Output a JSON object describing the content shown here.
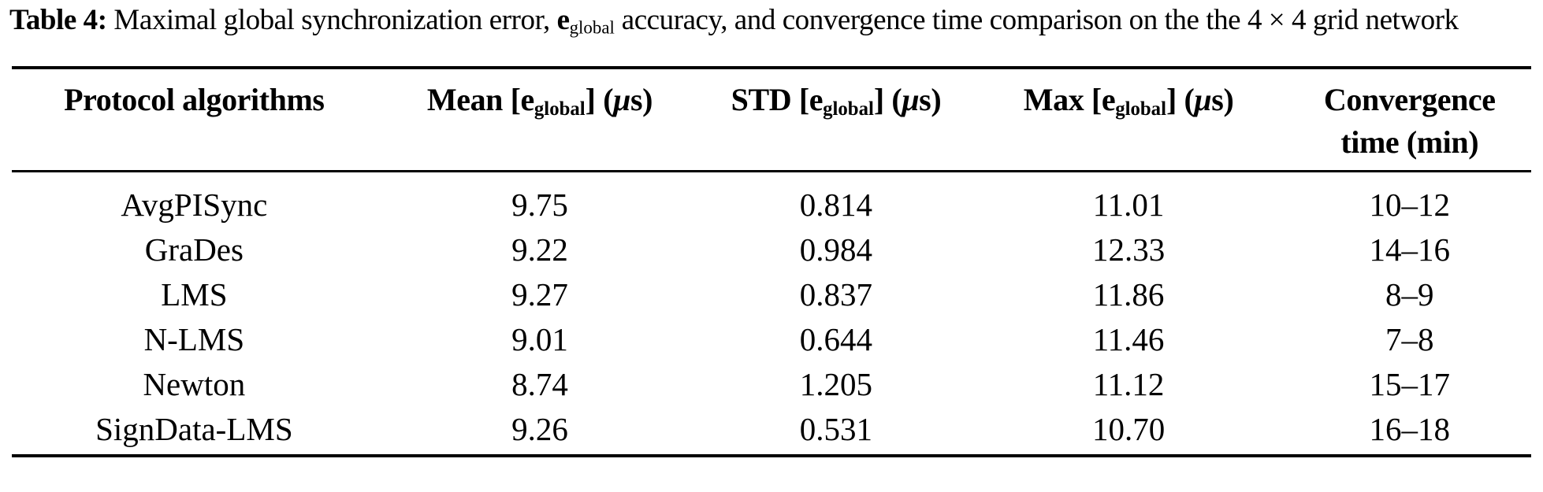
{
  "page": {
    "background_color": "#ffffff",
    "text_color": "#000000"
  },
  "caption": {
    "label": "Table 4:",
    "segments": [
      {
        "text": "Table 4:",
        "style": "bold"
      },
      {
        "text": " Maximal global synchronization error, ",
        "style": "normal"
      },
      {
        "text": "e",
        "style": "bold"
      },
      {
        "text": "global",
        "style": "subscript"
      },
      {
        "text": " accuracy, and convergence time comparison on the the 4 × 4 grid network",
        "style": "normal"
      }
    ]
  },
  "table": {
    "row_keys": [
      "algorithm",
      "mean",
      "std",
      "max",
      "convergence"
    ],
    "columns": [
      {
        "id": "algorithm",
        "segments": [
          {
            "text": "Protocol algorithms",
            "style": "bold"
          }
        ]
      },
      {
        "id": "mean",
        "segments": [
          {
            "text": "Mean ",
            "style": "bold"
          },
          {
            "text": "[",
            "style": "normal"
          },
          {
            "text": "e",
            "style": "bold"
          },
          {
            "text": "global",
            "style": "bold-subscript"
          },
          {
            "text": "] (",
            "style": "normal"
          },
          {
            "text": "μ",
            "style": "italic"
          },
          {
            "text": "s",
            "style": "bold"
          },
          {
            "text": ")",
            "style": "normal"
          }
        ]
      },
      {
        "id": "std",
        "segments": [
          {
            "text": "STD ",
            "style": "bold"
          },
          {
            "text": "[",
            "style": "normal"
          },
          {
            "text": "e",
            "style": "bold"
          },
          {
            "text": "global",
            "style": "bold-subscript"
          },
          {
            "text": "] (",
            "style": "normal"
          },
          {
            "text": "μ",
            "style": "italic"
          },
          {
            "text": "s",
            "style": "bold"
          },
          {
            "text": ")",
            "style": "normal"
          }
        ]
      },
      {
        "id": "max",
        "segments": [
          {
            "text": "Max ",
            "style": "bold"
          },
          {
            "text": "[",
            "style": "normal"
          },
          {
            "text": "e",
            "style": "bold"
          },
          {
            "text": "global",
            "style": "bold-subscript"
          },
          {
            "text": "] (",
            "style": "normal"
          },
          {
            "text": "μ",
            "style": "italic"
          },
          {
            "text": "s",
            "style": "bold"
          },
          {
            "text": ")",
            "style": "normal"
          }
        ]
      },
      {
        "id": "convergence",
        "segments": [
          {
            "text": "Convergence",
            "style": "bold"
          },
          {
            "style": "break"
          },
          {
            "text": "time (min)",
            "style": "bold"
          }
        ]
      }
    ],
    "rows": [
      {
        "algorithm": "AvgPISync",
        "mean": "9.75",
        "std": "0.814",
        "max": "11.01",
        "convergence": "10–12"
      },
      {
        "algorithm": "GraDes",
        "mean": "9.22",
        "std": "0.984",
        "max": "12.33",
        "convergence": "14–16"
      },
      {
        "algorithm": "LMS",
        "mean": "9.27",
        "std": "0.837",
        "max": "11.86",
        "convergence": "8–9"
      },
      {
        "algorithm": "N-LMS",
        "mean": "9.01",
        "std": "0.644",
        "max": "11.46",
        "convergence": "7–8"
      },
      {
        "algorithm": "Newton",
        "mean": "8.74",
        "std": "1.205",
        "max": "11.12",
        "convergence": "15–17"
      },
      {
        "algorithm": "SignData-LMS",
        "mean": "9.26",
        "std": "0.531",
        "max": "10.70",
        "convergence": "16–18"
      }
    ]
  }
}
